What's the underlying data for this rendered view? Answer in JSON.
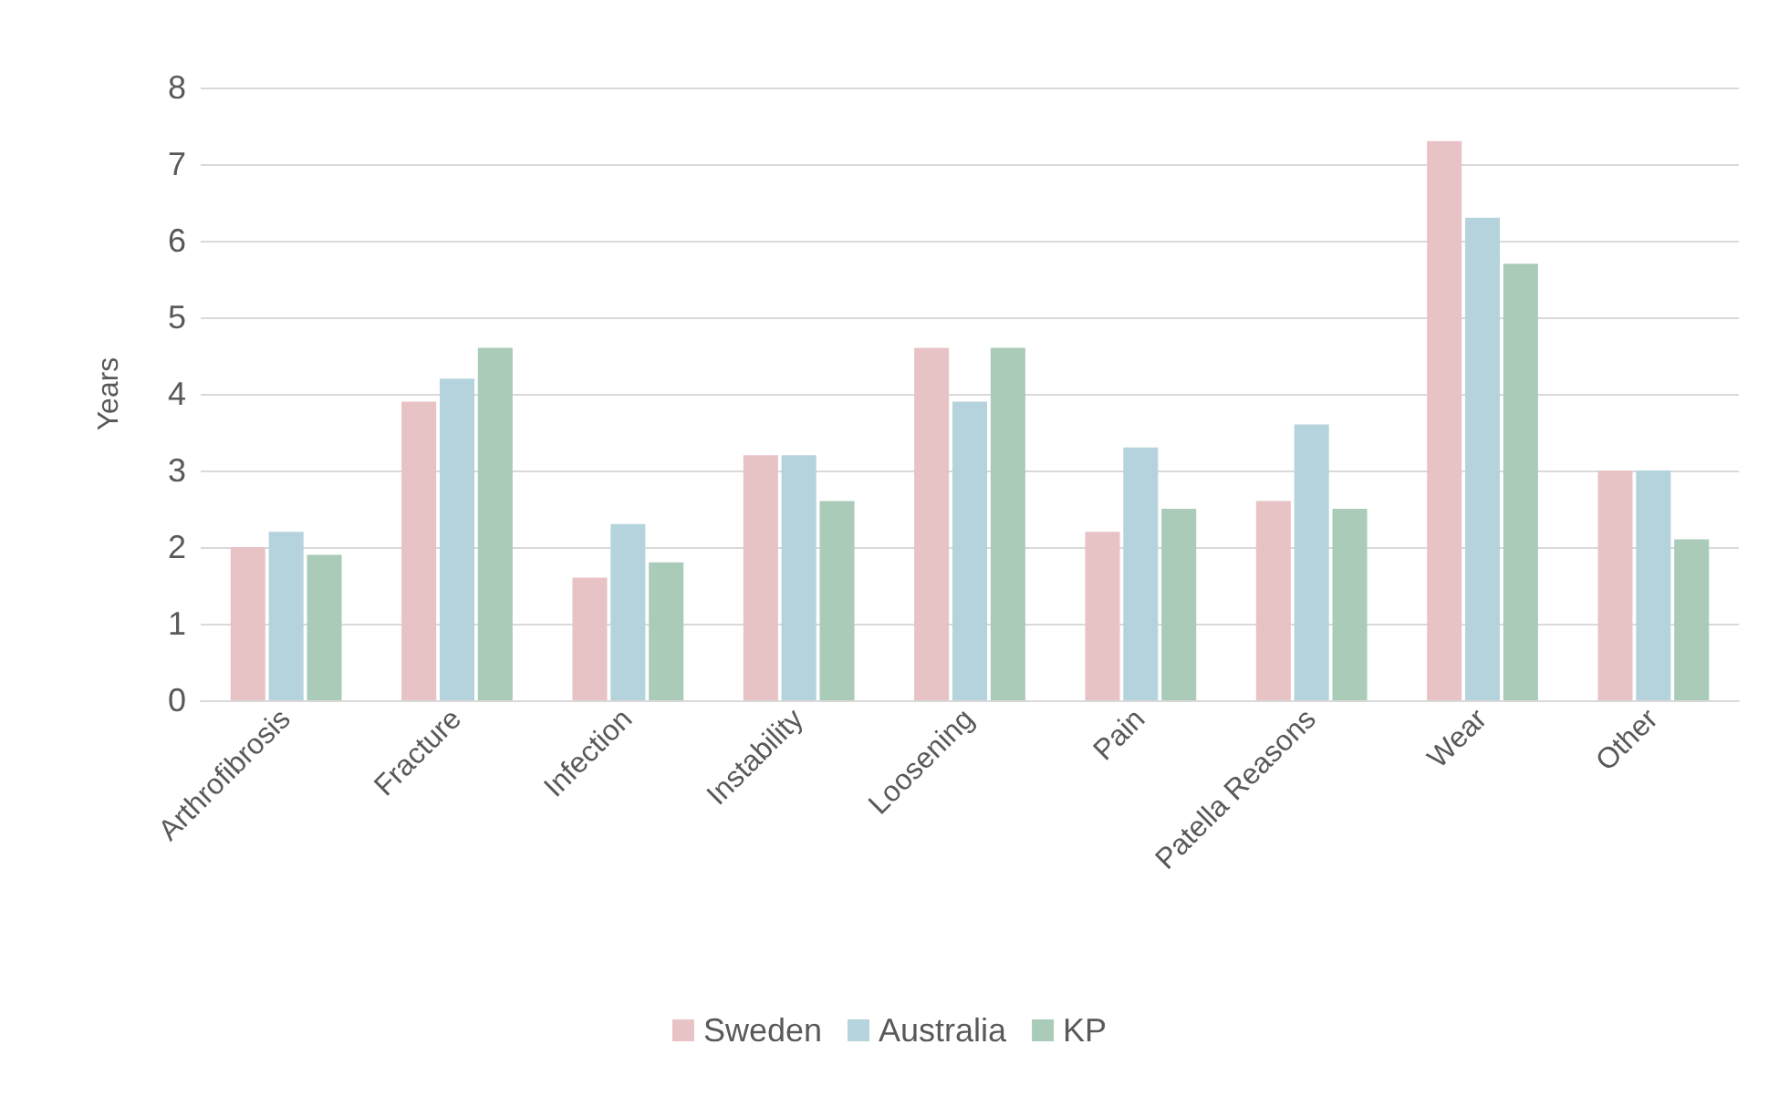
{
  "chart_data": {
    "type": "bar",
    "ylabel": "Years",
    "categories": [
      "Arthrofibrosis",
      "Fracture",
      "Infection",
      "Instability",
      "Loosening",
      "Pain",
      "Patella Reasons",
      "Wear",
      "Other"
    ],
    "series": [
      {
        "name": "Sweden",
        "color": "#e8c3c6",
        "values": [
          2.0,
          3.9,
          1.6,
          3.2,
          4.6,
          2.2,
          2.6,
          7.3,
          3.0
        ]
      },
      {
        "name": "Australia",
        "color": "#b5d3dc",
        "values": [
          2.2,
          4.2,
          2.3,
          3.2,
          3.9,
          3.3,
          3.6,
          6.3,
          3.0
        ]
      },
      {
        "name": "KP",
        "color": "#a9cbb7",
        "values": [
          1.9,
          4.6,
          1.8,
          2.6,
          4.6,
          2.5,
          2.5,
          5.7,
          2.1
        ]
      }
    ],
    "ylim": [
      0,
      8
    ],
    "yticks": [
      0,
      1,
      2,
      3,
      4,
      5,
      6,
      7,
      8
    ],
    "grid": "y",
    "legend": "bottom"
  }
}
